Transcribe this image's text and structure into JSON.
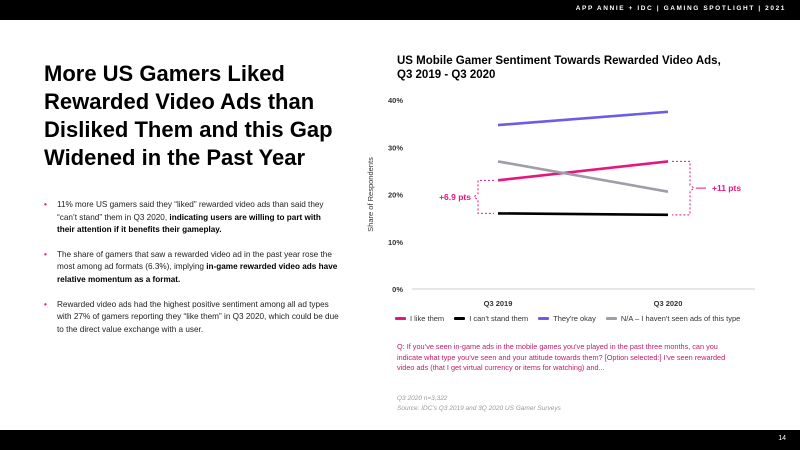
{
  "header": {
    "text": "APP ANNIE + IDC  |  GAMING SPOTLIGHT  |  2021"
  },
  "page_number": "14",
  "headline": "More US Gamers Liked Rewarded Video Ads than Disliked Them and this Gap Widened in the Past Year",
  "bullets": [
    {
      "before": "11% more US gamers said they “liked” rewarded video ads than said they “can’t stand” them in Q3 2020, ",
      "bold": "indicating users are willing to part with their attention if it benefits their gameplay.",
      "after": ""
    },
    {
      "before": "The share of gamers that saw a rewarded video ad in the past year rose the most among ad formats (6.3%), implying ",
      "bold": "in-game rewarded video ads have relative momentum as a format.",
      "after": ""
    },
    {
      "before": "Rewarded video ads had the highest positive sentiment among all ad types with 27% of gamers reporting they “like them” in Q3 2020, which could be due to the direct value exchange with a user.",
      "bold": "",
      "after": ""
    }
  ],
  "chart_title_lines": [
    "US Mobile Gamer Sentiment Towards Rewarded Video Ads,",
    "Q3 2019 - Q3 2020"
  ],
  "question": "Q: If you’ve seen in-game ads in the mobile games you’ve played in the past three months, can you indicate what type you’ve seen and your attitude towards them? [Option selected:] I’ve seen rewarded video ads (that I get virtual currency or items for watching) and...",
  "notes": [
    "Q3 2020 n=3,322",
    "Source: IDC’s Q3 2019 and 3Q 2020 US Gamer Surveys"
  ],
  "chart_data": {
    "type": "line",
    "x": [
      "Q3 2019",
      "Q3 2020"
    ],
    "ylabel": "Share of Respondents",
    "ylim": [
      0,
      40
    ],
    "yticks": [
      0,
      10,
      20,
      30,
      40
    ],
    "ytick_labels": [
      "0%",
      "10%",
      "20%",
      "30%",
      "40%"
    ],
    "grid": false,
    "legend": "bottom",
    "series": [
      {
        "name": "I like them",
        "color": "#e8157e",
        "values": [
          23,
          27
        ]
      },
      {
        "name": "I can't stand them",
        "color": "#000000",
        "values": [
          16,
          15.7
        ]
      },
      {
        "name": "They're okay",
        "color": "#6c5ce7",
        "values": [
          34.7,
          37.5
        ]
      },
      {
        "name": "N/A – I haven't seen ads of this type",
        "color": "#9e9ea8",
        "values": [
          27,
          20.6
        ]
      }
    ],
    "annotations": [
      {
        "text": "+6.9 pts",
        "at": "Q3 2019",
        "from": 16,
        "to": 23,
        "color": "#e8157e"
      },
      {
        "text": "+11 pts",
        "at": "Q3 2020",
        "from": 15.7,
        "to": 27,
        "color": "#e8157e"
      }
    ]
  }
}
